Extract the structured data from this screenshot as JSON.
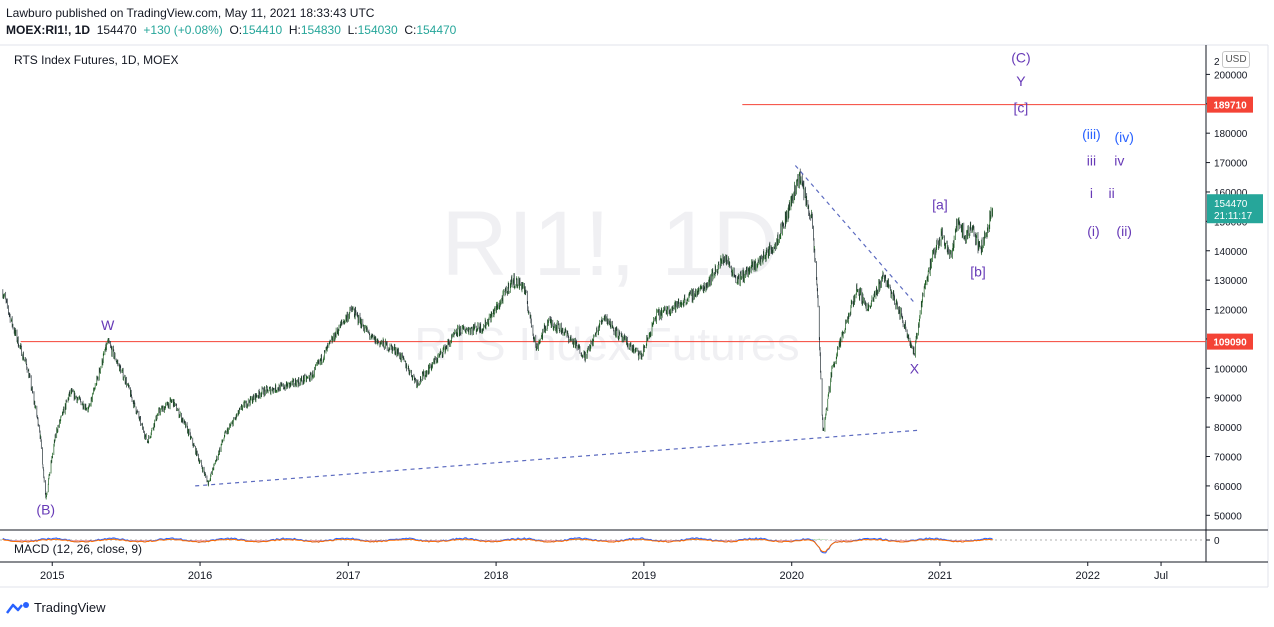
{
  "header": {
    "publisher_line": "Lawburo published on TradingView.com, May 11, 2021 18:33:43 UTC",
    "symbol": "MOEX:RI1!, 1D",
    "last": "154470",
    "change": "+130 (+0.08%)",
    "o_label": "O:",
    "o_value": "154410",
    "h_label": "H:",
    "h_value": "154830",
    "l_label": "L:",
    "l_value": "154030",
    "c_label": "C:",
    "c_value": "154470"
  },
  "chart_title": "RTS Index Futures, 1D, MOEX",
  "watermark": {
    "symbol": "RI1!, 1D",
    "name": "RTS Index Futures"
  },
  "currency_button": "USD",
  "macd_label": "MACD (12, 26, close, 9)",
  "branding": "TradingView",
  "colors": {
    "up": "#26a69a",
    "down": "#ef5350",
    "hline": "#f44336",
    "wave": "#673ab7",
    "wave_blue": "#2962ff",
    "trend": "#5c6bc0",
    "last_tag": "#26a69a"
  },
  "chart_data": {
    "type": "candlestick",
    "xlabel": "",
    "ylabel": "",
    "x_ticks": [
      "2015",
      "2016",
      "2017",
      "2018",
      "2019",
      "2020",
      "2021",
      "2022",
      "Jul"
    ],
    "x_tick_dates": [
      "2015-01-01",
      "2016-01-01",
      "2017-01-01",
      "2018-01-01",
      "2019-01-01",
      "2020-01-01",
      "2021-01-01",
      "2022-01-01",
      "2022-07-01"
    ],
    "y_ticks": [
      50000,
      60000,
      70000,
      80000,
      90000,
      100000,
      110000,
      120000,
      130000,
      140000,
      150000,
      160000,
      170000,
      180000,
      190000,
      200000
    ],
    "y_top_partial_label": "2",
    "ylim": [
      45000,
      210000
    ],
    "x_range": [
      "2014-08-25",
      "2022-10-20"
    ],
    "price_path": [
      [
        "2014-09-01",
        126000
      ],
      [
        "2014-10-01",
        112000
      ],
      [
        "2014-11-01",
        100000
      ],
      [
        "2014-12-01",
        79000
      ],
      [
        "2014-12-16",
        56000
      ],
      [
        "2015-01-10",
        78000
      ],
      [
        "2015-02-15",
        92000
      ],
      [
        "2015-04-01",
        86000
      ],
      [
        "2015-05-18",
        109000
      ],
      [
        "2015-07-01",
        96000
      ],
      [
        "2015-08-24",
        75000
      ],
      [
        "2015-09-20",
        85000
      ],
      [
        "2015-10-25",
        89000
      ],
      [
        "2015-12-01",
        79000
      ],
      [
        "2016-01-21",
        61000
      ],
      [
        "2016-03-01",
        77000
      ],
      [
        "2016-04-15",
        87000
      ],
      [
        "2016-06-01",
        92000
      ],
      [
        "2016-08-01",
        94000
      ],
      [
        "2016-10-01",
        97000
      ],
      [
        "2016-12-15",
        115000
      ],
      [
        "2017-01-10",
        120000
      ],
      [
        "2017-03-01",
        110000
      ],
      [
        "2017-05-01",
        106000
      ],
      [
        "2017-06-20",
        95000
      ],
      [
        "2017-08-01",
        102000
      ],
      [
        "2017-10-01",
        113000
      ],
      [
        "2017-12-01",
        114000
      ],
      [
        "2018-01-10",
        122000
      ],
      [
        "2018-02-10",
        130000
      ],
      [
        "2018-03-10",
        128000
      ],
      [
        "2018-04-10",
        107000
      ],
      [
        "2018-05-10",
        116000
      ],
      [
        "2018-06-15",
        113000
      ],
      [
        "2018-08-10",
        104000
      ],
      [
        "2018-09-25",
        118000
      ],
      [
        "2018-11-01",
        111000
      ],
      [
        "2018-12-25",
        104000
      ],
      [
        "2019-02-01",
        118000
      ],
      [
        "2019-04-01",
        122000
      ],
      [
        "2019-06-01",
        128000
      ],
      [
        "2019-07-20",
        138000
      ],
      [
        "2019-08-20",
        130000
      ],
      [
        "2019-10-10",
        136000
      ],
      [
        "2019-11-20",
        142000
      ],
      [
        "2019-12-20",
        152000
      ],
      [
        "2020-01-20",
        166000
      ],
      [
        "2020-02-20",
        150000
      ],
      [
        "2020-03-05",
        125000
      ],
      [
        "2020-03-18",
        78000
      ],
      [
        "2020-04-10",
        100000
      ],
      [
        "2020-05-10",
        113000
      ],
      [
        "2020-06-10",
        127000
      ],
      [
        "2020-07-10",
        120000
      ],
      [
        "2020-08-15",
        132000
      ],
      [
        "2020-09-15",
        122000
      ],
      [
        "2020-10-05",
        115000
      ],
      [
        "2020-10-30",
        105000
      ],
      [
        "2020-11-20",
        126000
      ],
      [
        "2020-12-15",
        138000
      ],
      [
        "2021-01-05",
        146000
      ],
      [
        "2021-01-29",
        138000
      ],
      [
        "2021-02-15",
        151000
      ],
      [
        "2021-03-05",
        144000
      ],
      [
        "2021-03-20",
        149000
      ],
      [
        "2021-04-10",
        140000
      ],
      [
        "2021-04-25",
        146000
      ],
      [
        "2021-05-11",
        154470
      ]
    ],
    "horizontal_lines": [
      {
        "price": 189710,
        "label": "189710",
        "from": "2019-09-01"
      },
      {
        "price": 109090,
        "label": "109090",
        "from": "2014-10-15"
      }
    ],
    "last_price": {
      "value": "154470",
      "countdown": "21:11:17"
    },
    "trend_lines": [
      {
        "from": [
          "2015-12-20",
          60000
        ],
        "to": [
          "2020-11-15",
          79000
        ]
      },
      {
        "from": [
          "2020-01-10",
          169000
        ],
        "to": [
          "2020-11-01",
          122000
        ]
      }
    ],
    "wave_labels": [
      {
        "text": "(B)",
        "date": "2014-12-16",
        "price": 55000,
        "pos": "below"
      },
      {
        "text": "W",
        "date": "2015-05-18",
        "price": 111000,
        "pos": "above"
      },
      {
        "text": "X",
        "date": "2020-10-30",
        "price": 103000,
        "pos": "below"
      },
      {
        "text": "[a]",
        "date": "2021-01-01",
        "price": 152000,
        "pos": "above"
      },
      {
        "text": "[b]",
        "date": "2021-04-05",
        "price": 136000,
        "pos": "below"
      },
      {
        "text": "(C)",
        "date": "2021-07-20",
        "price": 204000,
        "pos": "at"
      },
      {
        "text": "Y",
        "date": "2021-07-20",
        "price": 196000,
        "pos": "at"
      },
      {
        "text": "[c]",
        "date": "2021-07-20",
        "price": 187000,
        "pos": "at"
      },
      {
        "text": "(iii)",
        "date": "2022-01-10",
        "price": 178000,
        "pos": "at",
        "color": "blue"
      },
      {
        "text": "(iv)",
        "date": "2022-04-01",
        "price": 177000,
        "pos": "at",
        "color": "blue"
      },
      {
        "text": "iii",
        "date": "2022-01-10",
        "price": 169000,
        "pos": "at"
      },
      {
        "text": "iv",
        "date": "2022-03-20",
        "price": 169000,
        "pos": "at"
      },
      {
        "text": "i",
        "date": "2022-01-10",
        "price": 158000,
        "pos": "at"
      },
      {
        "text": "ii",
        "date": "2022-03-01",
        "price": 158000,
        "pos": "at"
      },
      {
        "text": "(i)",
        "date": "2022-01-15",
        "price": 145000,
        "pos": "at"
      },
      {
        "text": "(ii)",
        "date": "2022-04-01",
        "price": 145000,
        "pos": "at"
      }
    ],
    "macd": {
      "zero_label": "0"
    }
  }
}
